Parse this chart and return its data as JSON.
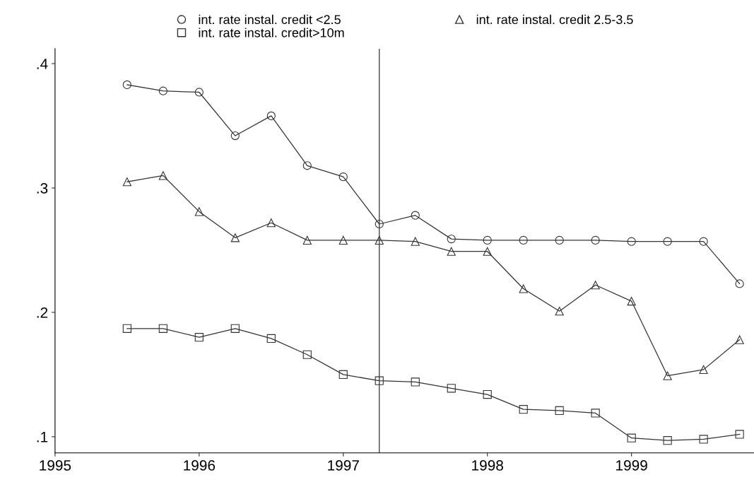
{
  "chart_data": {
    "type": "line",
    "x": [
      1995.5,
      1995.75,
      1996,
      1996.25,
      1996.5,
      1996.75,
      1997,
      1997.25,
      1997.5,
      1997.75,
      1998,
      1998.25,
      1998.5,
      1998.75,
      1999,
      1999.25,
      1999.5,
      1999.75
    ],
    "series": [
      {
        "name": "int. rate instal. credit <2.5",
        "color": "#333333",
        "marker": "circle",
        "values": [
          0.383,
          0.378,
          0.377,
          0.342,
          0.358,
          0.318,
          0.309,
          0.271,
          0.278,
          0.259,
          0.258,
          0.258,
          0.258,
          0.258,
          0.257,
          0.257,
          0.257,
          0.223
        ]
      },
      {
        "name": "int. rate instal. credit 2.5-3.5",
        "color": "#333333",
        "marker": "triangle",
        "values": [
          0.305,
          0.31,
          0.281,
          0.26,
          0.272,
          0.258,
          0.258,
          0.258,
          0.257,
          0.249,
          0.249,
          0.219,
          0.201,
          0.222,
          0.209,
          0.149,
          0.154,
          0.178
        ]
      },
      {
        "name": "int. rate instal. credit>10m",
        "color": "#333333",
        "marker": "square",
        "values": [
          0.187,
          0.187,
          0.18,
          0.187,
          0.179,
          0.166,
          0.15,
          0.145,
          0.144,
          0.139,
          0.134,
          0.122,
          0.121,
          0.119,
          0.099,
          0.097,
          0.098,
          0.102
        ]
      }
    ],
    "xlim": [
      1995,
      1999.85
    ],
    "xticks": [
      1995,
      1996,
      1997,
      1998,
      1999
    ],
    "ylim": [
      0.087,
      0.412
    ],
    "yticks": [
      {
        "value": 0.1,
        "label": ".1"
      },
      {
        "value": 0.2,
        "label": ".2"
      },
      {
        "value": 0.3,
        "label": ".3"
      },
      {
        "value": 0.4,
        "label": ".4"
      }
    ],
    "ref_lines": [
      {
        "axis": "x",
        "value": 1997.25,
        "color": "#333333"
      }
    ],
    "legend": "top",
    "grid": false
  }
}
